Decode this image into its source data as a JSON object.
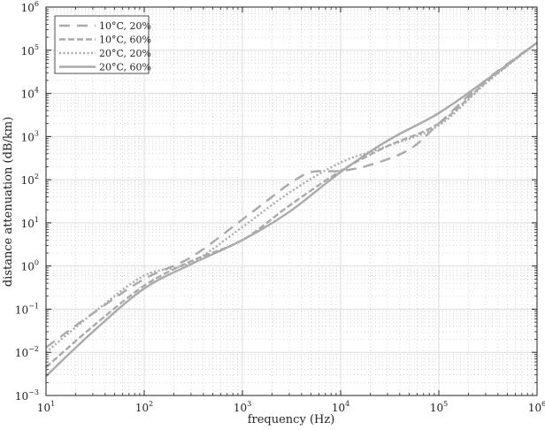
{
  "chart_data": {
    "type": "line",
    "title": "",
    "xlabel": "frequency (Hz)",
    "ylabel": "distance attenuation (dB/km)",
    "xscale": "log",
    "yscale": "log",
    "xlim": [
      10,
      1000000
    ],
    "ylim": [
      0.001,
      1000000
    ],
    "grid": true,
    "minor_grid": true,
    "legend_position": "upper left",
    "x_ticks": [
      "10^1",
      "10^2",
      "10^3",
      "10^4",
      "10^5",
      "10^6"
    ],
    "y_ticks": [
      "10^-3",
      "10^-2",
      "10^-1",
      "10^0",
      "10^1",
      "10^2",
      "10^3",
      "10^4",
      "10^5",
      "10^6"
    ],
    "series": [
      {
        "name": "10°C, 20%",
        "style": "long-dash",
        "x": [
          10,
          30,
          100,
          300,
          1000,
          2000,
          3000,
          5000,
          10000,
          20000,
          50000,
          100000,
          300000,
          1000000
        ],
        "values": [
          0.013,
          0.08,
          0.5,
          1.6,
          12,
          40,
          80,
          150,
          160,
          220,
          500,
          2000,
          20000,
          150000
        ]
      },
      {
        "name": "10°C, 60%",
        "style": "dash",
        "x": [
          10,
          30,
          100,
          300,
          1000,
          3000,
          10000,
          30000,
          100000,
          300000,
          1000000
        ],
        "values": [
          0.0045,
          0.04,
          0.35,
          1.3,
          4,
          25,
          160,
          600,
          2000,
          18000,
          150000
        ]
      },
      {
        "name": "20°C, 20%",
        "style": "dotted",
        "x": [
          10,
          30,
          100,
          300,
          1000,
          3000,
          10000,
          30000,
          100000,
          300000,
          1000000
        ],
        "values": [
          0.01,
          0.08,
          0.6,
          1.2,
          8,
          50,
          250,
          600,
          1800,
          17000,
          150000
        ]
      },
      {
        "name": "20°C, 60%",
        "style": "solid",
        "x": [
          10,
          30,
          100,
          300,
          1000,
          3000,
          10000,
          30000,
          100000,
          300000,
          1000000
        ],
        "values": [
          0.0028,
          0.03,
          0.3,
          1.1,
          4,
          18,
          150,
          800,
          3500,
          20000,
          150000
        ]
      }
    ],
    "line_color": "#aaaaaa"
  }
}
